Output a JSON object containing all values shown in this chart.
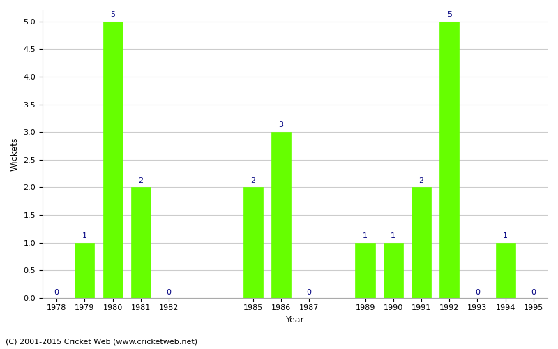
{
  "years": [
    1978,
    1979,
    1980,
    1981,
    1982,
    1985,
    1986,
    1987,
    1989,
    1990,
    1991,
    1992,
    1993,
    1994,
    1995
  ],
  "wickets": [
    0,
    1,
    5,
    2,
    0,
    2,
    3,
    0,
    1,
    1,
    2,
    5,
    0,
    1,
    0
  ],
  "bar_color": "#66ff00",
  "bar_edge_color": "#66ff00",
  "xlabel": "Year",
  "ylabel": "Wickets",
  "ylim": [
    0,
    5.2
  ],
  "xlim": [
    1977.5,
    1995.5
  ],
  "yticks": [
    0.0,
    0.5,
    1.0,
    1.5,
    2.0,
    2.5,
    3.0,
    3.5,
    4.0,
    4.5,
    5.0
  ],
  "label_color": "#000080",
  "label_fontsize": 8,
  "axis_label_fontsize": 9,
  "tick_fontsize": 8,
  "background_color": "#ffffff",
  "grid_color": "#cccccc",
  "footer_text": "(C) 2001-2015 Cricket Web (www.cricketweb.net)",
  "footer_fontsize": 8,
  "bar_width": 0.7
}
